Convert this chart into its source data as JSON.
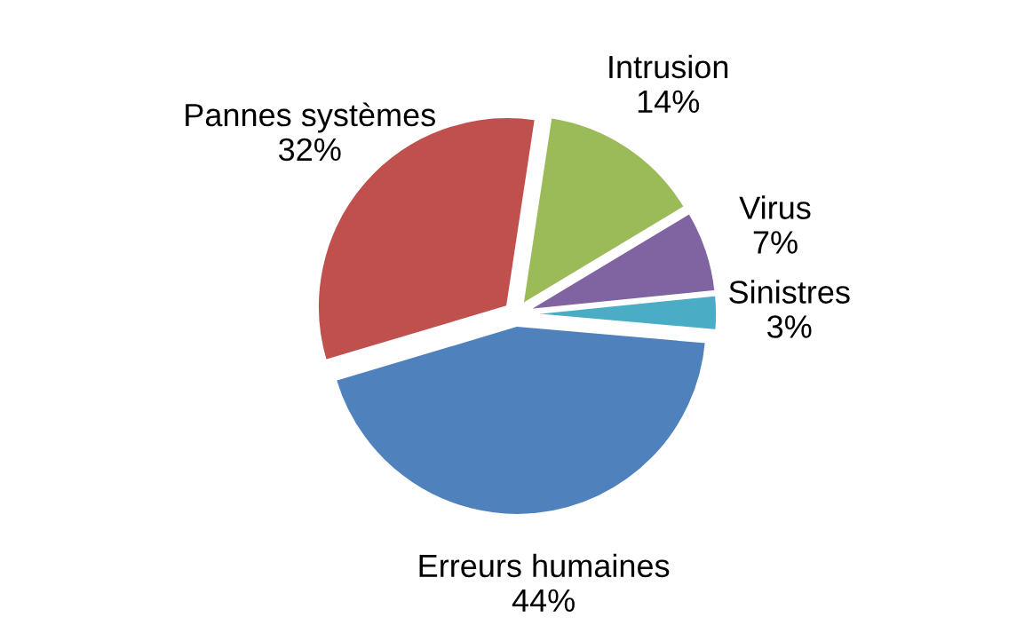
{
  "chart_data": {
    "type": "pie",
    "categories": [
      "Sinistres",
      "Virus",
      "Intrusion",
      "Pannes systèmes",
      "Erreurs humaines"
    ],
    "values": [
      3,
      7,
      14,
      32,
      44
    ],
    "value_labels": [
      "3%",
      "7%",
      "14%",
      "32%",
      "44%"
    ],
    "colors": [
      "#4bacc6",
      "#8064a2",
      "#9bbb59",
      "#c0504d",
      "#4f81bd"
    ],
    "legend": false
  }
}
